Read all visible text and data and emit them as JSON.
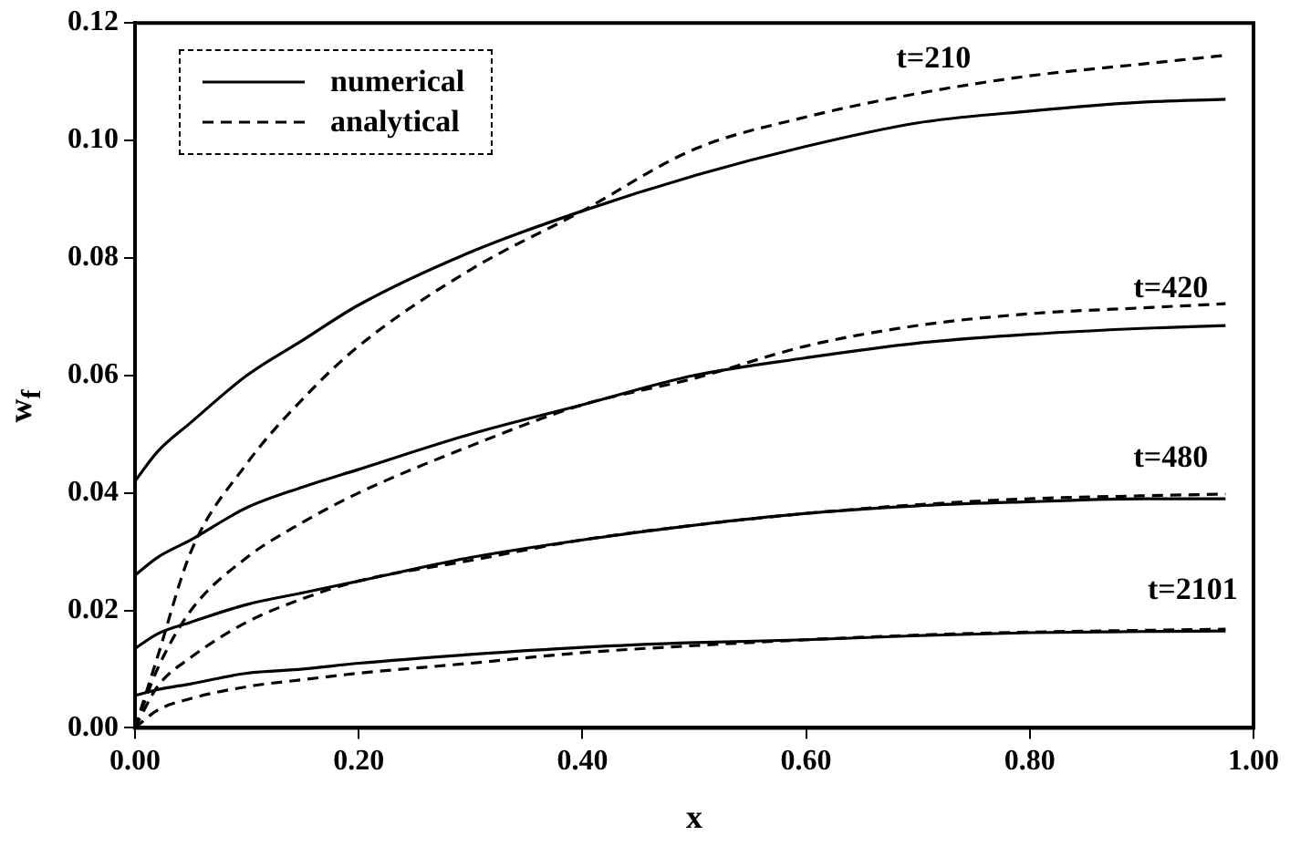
{
  "chart_data": {
    "type": "line",
    "xlabel": "x",
    "ylabel": "w$_{f}$",
    "x": [
      0,
      0.02,
      0.05,
      0.1,
      0.15,
      0.2,
      0.3,
      0.4,
      0.5,
      0.6,
      0.7,
      0.8,
      0.9,
      0.975
    ],
    "series": [
      {
        "name": "numerical",
        "type": "line",
        "line_style": "solid",
        "color": "#000000",
        "values": [
          0.042,
          0.047,
          0.052,
          0.06,
          0.066,
          0.072,
          0.081,
          0.088,
          0.094,
          0.099,
          0.103,
          0.105,
          0.1065,
          0.107
        ]
      },
      {
        "name": "analytical",
        "type": "line",
        "line_style": "dashed",
        "color": "#000000",
        "values": [
          0,
          0.012,
          0.03,
          0.045,
          0.056,
          0.065,
          0.078,
          0.088,
          0.0985,
          0.104,
          0.108,
          0.111,
          0.113,
          0.1145
        ]
      },
      {
        "type": "line",
        "line_style": "solid",
        "color": "#000000",
        "values": [
          0.026,
          0.029,
          0.032,
          0.0375,
          0.041,
          0.044,
          0.05,
          0.055,
          0.06,
          0.063,
          0.0655,
          0.067,
          0.068,
          0.0685
        ]
      },
      {
        "type": "line",
        "line_style": "dashed",
        "color": "#000000",
        "values": [
          0,
          0.01,
          0.02,
          0.029,
          0.035,
          0.04,
          0.048,
          0.055,
          0.0595,
          0.065,
          0.0685,
          0.0705,
          0.0715,
          0.0722
        ]
      },
      {
        "type": "line",
        "line_style": "solid",
        "color": "#000000",
        "values": [
          0.0135,
          0.016,
          0.018,
          0.021,
          0.023,
          0.025,
          0.029,
          0.032,
          0.0345,
          0.0365,
          0.0378,
          0.0385,
          0.039,
          0.039
        ]
      },
      {
        "type": "line",
        "line_style": "dashed",
        "color": "#000000",
        "values": [
          0,
          0.007,
          0.012,
          0.018,
          0.022,
          0.025,
          0.0285,
          0.032,
          0.0345,
          0.0365,
          0.038,
          0.039,
          0.0395,
          0.0398
        ]
      },
      {
        "type": "line",
        "line_style": "solid",
        "color": "#000000",
        "values": [
          0.0055,
          0.0065,
          0.0075,
          0.0093,
          0.01,
          0.011,
          0.0125,
          0.0137,
          0.0145,
          0.015,
          0.0157,
          0.0162,
          0.0164,
          0.0165
        ]
      },
      {
        "type": "line",
        "line_style": "dashed",
        "color": "#000000",
        "values": [
          0,
          0.003,
          0.005,
          0.007,
          0.0082,
          0.0093,
          0.011,
          0.0128,
          0.014,
          0.015,
          0.0158,
          0.0163,
          0.0166,
          0.0168
        ]
      }
    ],
    "xlim": [
      0,
      1
    ],
    "xticks": [
      {
        "value": 0,
        "label": "0.00"
      },
      {
        "value": 0.2,
        "label": "0.20"
      },
      {
        "value": 0.4,
        "label": "0.40"
      },
      {
        "value": 0.6,
        "label": "0.60"
      },
      {
        "value": 0.8,
        "label": "0.80"
      },
      {
        "value": 1,
        "label": "1.00"
      }
    ],
    "ylim": [
      0,
      0.12
    ],
    "yticks": [
      {
        "value": 0,
        "label": "0.00"
      },
      {
        "value": 0.02,
        "label": "0.02"
      },
      {
        "value": 0.04,
        "label": "0.04"
      },
      {
        "value": 0.06,
        "label": "0.06"
      },
      {
        "value": 0.08,
        "label": "0.08"
      },
      {
        "value": 0.1,
        "label": "0.10"
      },
      {
        "value": 0.12,
        "label": "0.12"
      }
    ],
    "annotations": [
      "t=210",
      "t=420",
      "t=480",
      "t=2101"
    ],
    "grid": false,
    "legend": "top left",
    "marker": "none"
  }
}
